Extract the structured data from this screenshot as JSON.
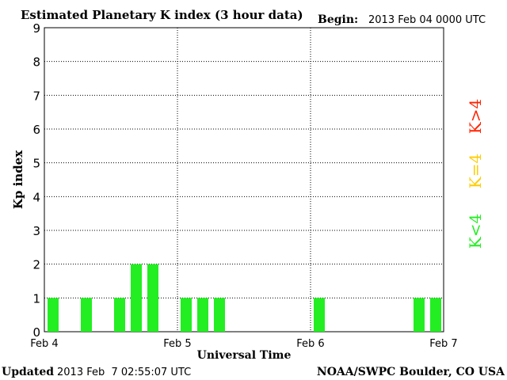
{
  "header": {
    "title": "Estimated Planetary K index (3 hour data)",
    "begin_label": "Begin:",
    "begin_value": "2013 Feb 04 0000 UTC"
  },
  "footer": {
    "updated_label": "Updated",
    "updated_value": "2013 Feb  7 02:55:07 UTC",
    "source": "NOAA/SWPC Boulder, CO USA"
  },
  "legend": [
    {
      "label": "K>4",
      "color": "#ff2200"
    },
    {
      "label": "K=4",
      "color": "#ffcc00"
    },
    {
      "label": "K<4",
      "color": "#22ee22"
    }
  ],
  "chart_data": {
    "type": "bar",
    "title": "Estimated Planetary K index (3 hour data)",
    "xlabel": "Universal Time",
    "ylabel": "Kp index",
    "ylim": [
      0,
      9
    ],
    "yticks": [
      "0",
      "1",
      "2",
      "3",
      "4",
      "5",
      "6",
      "7",
      "8",
      "9"
    ],
    "xlim_hours": [
      0,
      72
    ],
    "xticks": [
      {
        "label": "Feb 4",
        "hour": 0
      },
      {
        "label": "Feb 5",
        "hour": 24
      },
      {
        "label": "Feb 6",
        "hour": 48
      },
      {
        "label": "Feb 7",
        "hour": 72
      }
    ],
    "bar_interval_hours": 3,
    "grid": "dotted",
    "bar_color": "#22ee22",
    "bars": [
      {
        "hour": 0,
        "value": 1
      },
      {
        "hour": 6,
        "value": 1
      },
      {
        "hour": 12,
        "value": 1
      },
      {
        "hour": 15,
        "value": 2
      },
      {
        "hour": 18,
        "value": 2
      },
      {
        "hour": 24,
        "value": 1
      },
      {
        "hour": 27,
        "value": 1
      },
      {
        "hour": 30,
        "value": 1
      },
      {
        "hour": 48,
        "value": 1
      },
      {
        "hour": 66,
        "value": 1
      },
      {
        "hour": 69,
        "value": 1
      }
    ]
  }
}
